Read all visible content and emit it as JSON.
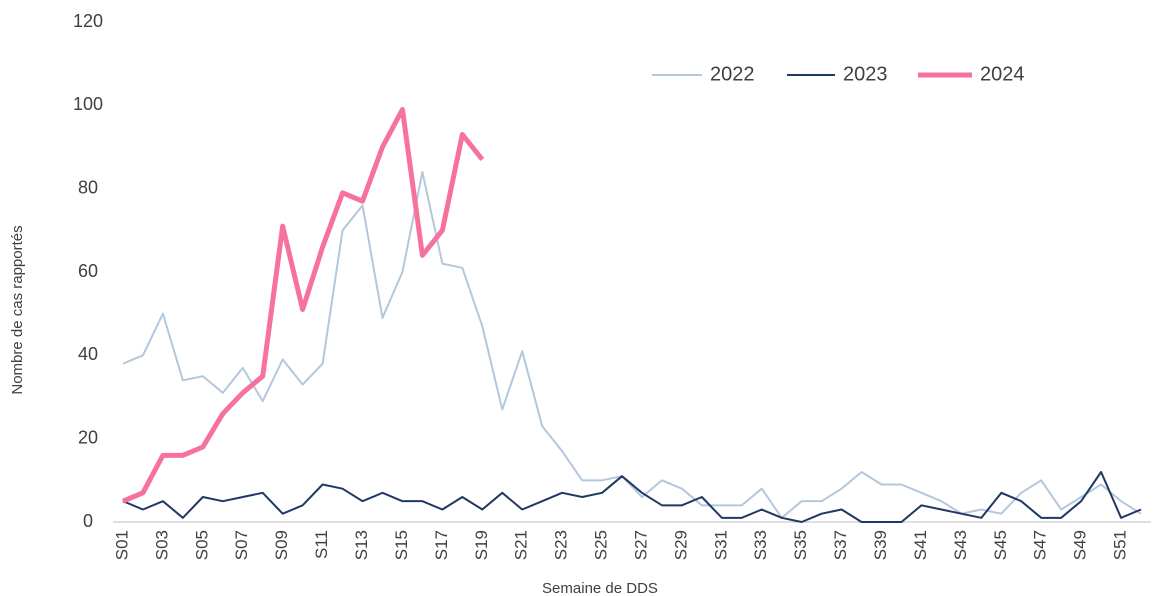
{
  "chart_data": {
    "type": "line",
    "x_label": "Semaine de DDS",
    "y_label": "Nombre de cas rapportés",
    "categories": [
      "S01",
      null,
      "S03",
      null,
      "S05",
      null,
      "S07",
      null,
      "S09",
      null,
      "S11",
      null,
      "S13",
      null,
      "S15",
      null,
      "S17",
      null,
      "S19",
      null,
      "S21",
      null,
      "S23",
      null,
      "S25",
      null,
      "S27",
      null,
      "S29",
      null,
      "S31",
      null,
      "S33",
      null,
      "S35",
      null,
      "S37",
      null,
      "S39",
      null,
      "S41",
      null,
      "S43",
      null,
      "S45",
      null,
      "S47",
      null,
      "S49",
      null,
      "S51",
      null
    ],
    "series": [
      {
        "name": "2022",
        "color": "#b4c7dc",
        "width": 2,
        "values": [
          38,
          40,
          50,
          34,
          35,
          31,
          37,
          29,
          39,
          33,
          38,
          70,
          76,
          49,
          60,
          84,
          62,
          61,
          47,
          27,
          41,
          23,
          17,
          10,
          10,
          11,
          6,
          10,
          8,
          4,
          4,
          4,
          8,
          1,
          5,
          5,
          8,
          12,
          9,
          9,
          7,
          5,
          2,
          3,
          2,
          7,
          10,
          3,
          6,
          9,
          5,
          2
        ]
      },
      {
        "name": "2023",
        "color": "#1f3864",
        "width": 2,
        "values": [
          5,
          3,
          5,
          1,
          6,
          5,
          6,
          7,
          2,
          4,
          9,
          8,
          5,
          7,
          5,
          5,
          3,
          6,
          3,
          7,
          3,
          5,
          7,
          6,
          7,
          11,
          7,
          4,
          4,
          6,
          1,
          1,
          3,
          1,
          0,
          2,
          3,
          0,
          0,
          0,
          4,
          3,
          2,
          1,
          7,
          5,
          1,
          1,
          5,
          12,
          1,
          3
        ]
      },
      {
        "name": "2024",
        "color": "#f7719f",
        "width": 5,
        "values": [
          5,
          7,
          16,
          16,
          18,
          26,
          31,
          35,
          71,
          51,
          66,
          79,
          77,
          90,
          99,
          64,
          70,
          93,
          87,
          null,
          null,
          null,
          null,
          null,
          null,
          null,
          null,
          null,
          null,
          null,
          null,
          null,
          null,
          null,
          null,
          null,
          null,
          null,
          null,
          null,
          null,
          null,
          null,
          null,
          null,
          null,
          null,
          null,
          null,
          null,
          null,
          null
        ]
      }
    ],
    "ylim": [
      0,
      120
    ],
    "yticks": [
      0,
      20,
      40,
      60,
      80,
      100,
      120
    ],
    "grid": false,
    "legend": "top-right"
  }
}
